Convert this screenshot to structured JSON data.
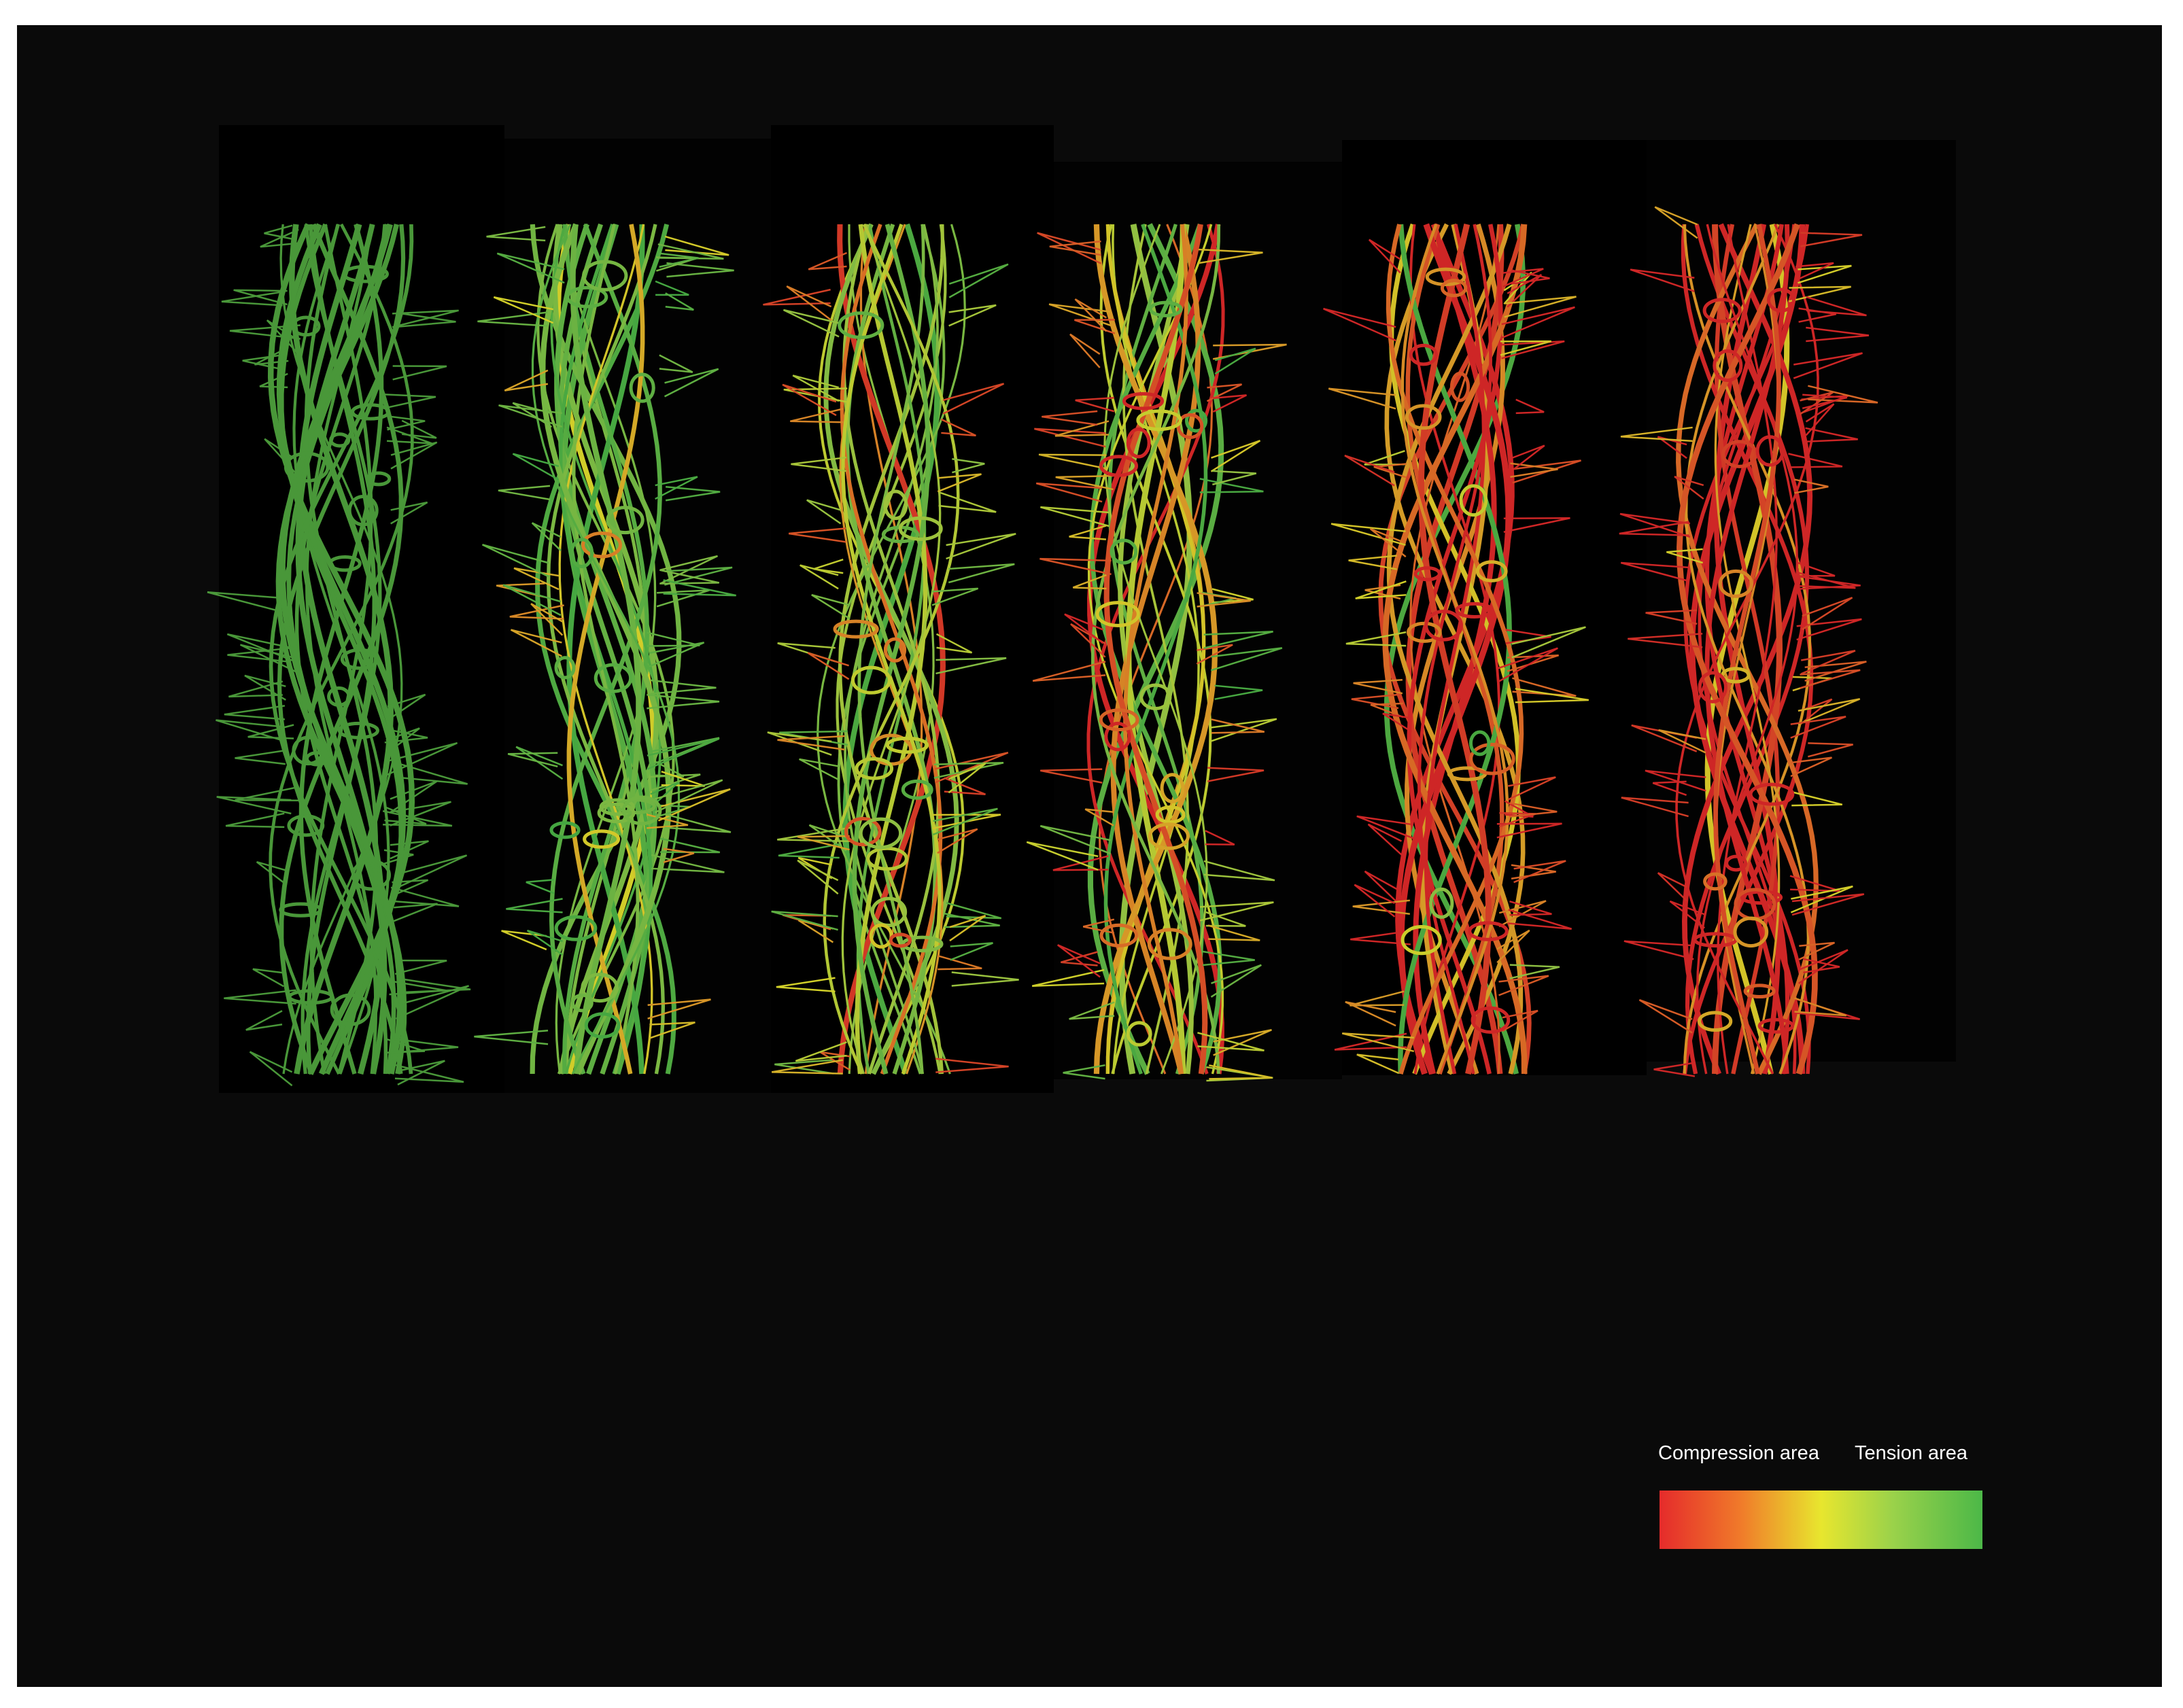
{
  "legend": {
    "left_label": "Compression area",
    "right_label": "Tension area"
  }
}
